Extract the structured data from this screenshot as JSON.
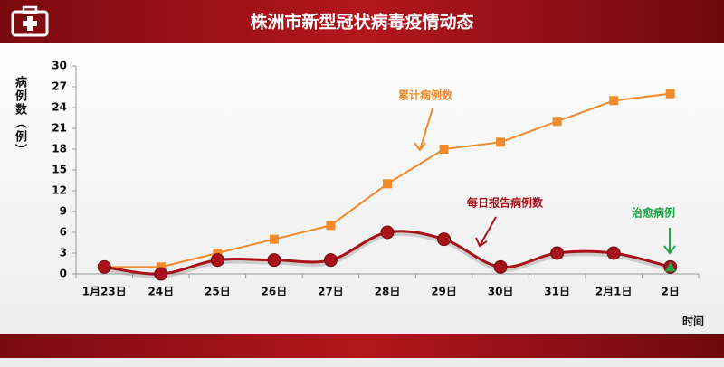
{
  "chart_data": {
    "type": "line",
    "title": "株洲市新型冠状病毒疫情动态",
    "y_label": "病例数（例）",
    "x_label": "时间",
    "categories": [
      "1月23日",
      "24日",
      "25日",
      "26日",
      "27日",
      "28日",
      "29日",
      "30日",
      "31日",
      "2月1日",
      "2日"
    ],
    "series": [
      {
        "name": "累计病例数",
        "color": "#f08a2a",
        "marker": "square",
        "smooth": false,
        "values": [
          1,
          1,
          3,
          5,
          7,
          13,
          18,
          19,
          22,
          25,
          26
        ]
      },
      {
        "name": "每日报告病例数",
        "color": "#a8121a",
        "marker": "circle",
        "smooth": true,
        "values": [
          1,
          0,
          2,
          2,
          2,
          6,
          5,
          1,
          3,
          3,
          1
        ]
      },
      {
        "name": "治愈病例",
        "color": "#22a44a",
        "marker": "triangle",
        "smooth": false,
        "values": [
          null,
          null,
          null,
          null,
          null,
          null,
          null,
          null,
          null,
          null,
          1
        ]
      }
    ],
    "ylim": [
      0,
      30
    ],
    "yticks": [
      0,
      3,
      6,
      9,
      12,
      15,
      18,
      21,
      24,
      27,
      30
    ],
    "grid": false
  }
}
